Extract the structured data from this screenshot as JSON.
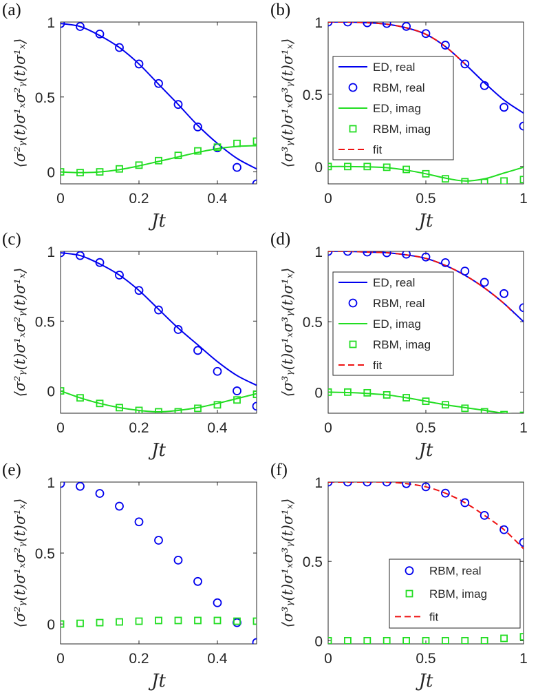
{
  "colors": {
    "real": "#0000ee",
    "imag": "#22dd22",
    "fit": "#ee1111",
    "axis": "#262626"
  },
  "chart_data": [
    {
      "id": "a",
      "panel_label": "(a)",
      "type": "line",
      "xlabel": "Jt",
      "ylabel": "⟨σ²ᵧ(t)σ¹ₓσ²ᵧ(t)σ¹ₓ⟩",
      "xlim": [
        0,
        0.5
      ],
      "ylim": [
        -0.08,
        1.0
      ],
      "xticks": [
        0,
        0.2,
        0.4
      ],
      "xtick_labels": [
        "0",
        "0.2",
        "0.4"
      ],
      "yticks": [
        0,
        0.5,
        1
      ],
      "ytick_labels": [
        "0",
        "0.5",
        "1"
      ],
      "grid": false,
      "legend": null,
      "series": [
        {
          "kind": "line",
          "color_key": "real",
          "x": [
            0,
            0.05,
            0.1,
            0.15,
            0.2,
            0.25,
            0.3,
            0.35,
            0.4,
            0.45,
            0.5
          ],
          "y": [
            0.99,
            0.97,
            0.91,
            0.83,
            0.72,
            0.585,
            0.45,
            0.31,
            0.19,
            0.09,
            0.02
          ]
        },
        {
          "kind": "circle",
          "color_key": "real",
          "x": [
            0,
            0.05,
            0.1,
            0.15,
            0.2,
            0.25,
            0.3,
            0.35,
            0.4,
            0.45,
            0.5
          ],
          "y": [
            0.99,
            0.97,
            0.92,
            0.83,
            0.72,
            0.59,
            0.45,
            0.3,
            0.16,
            0.03,
            -0.08
          ]
        },
        {
          "kind": "line",
          "color_key": "imag",
          "x": [
            0,
            0.05,
            0.1,
            0.15,
            0.2,
            0.25,
            0.3,
            0.35,
            0.4,
            0.45,
            0.5
          ],
          "y": [
            0,
            -0.005,
            0.0,
            0.015,
            0.04,
            0.07,
            0.1,
            0.13,
            0.155,
            0.17,
            0.175
          ]
        },
        {
          "kind": "square",
          "color_key": "imag",
          "x": [
            0,
            0.05,
            0.1,
            0.15,
            0.2,
            0.25,
            0.3,
            0.35,
            0.4,
            0.45,
            0.5
          ],
          "y": [
            0,
            -0.005,
            0.0,
            0.02,
            0.045,
            0.075,
            0.11,
            0.14,
            0.165,
            0.19,
            0.205
          ]
        }
      ]
    },
    {
      "id": "b",
      "panel_label": "(b)",
      "type": "line",
      "xlabel": "Jt",
      "ylabel": "⟨σ³ᵧ(t)σ¹ₓσ³ᵧ(t)σ¹ₓ⟩",
      "xlim": [
        0,
        1
      ],
      "ylim": [
        -0.12,
        1.0
      ],
      "xticks": [
        0,
        0.5,
        1
      ],
      "xtick_labels": [
        "0",
        "0.5",
        "1"
      ],
      "yticks": [
        0,
        0.5,
        1
      ],
      "ytick_labels": [
        "0",
        "0.5",
        "1"
      ],
      "grid": false,
      "legend": {
        "position": "left",
        "entries": [
          {
            "label": "ED, real",
            "kind": "line",
            "color_key": "real"
          },
          {
            "label": "RBM, real",
            "kind": "circle",
            "color_key": "real"
          },
          {
            "label": "ED, imag",
            "kind": "line",
            "color_key": "imag"
          },
          {
            "label": "RBM, imag",
            "kind": "square",
            "color_key": "imag"
          },
          {
            "label": "fit",
            "kind": "dash",
            "color_key": "fit"
          }
        ]
      },
      "series": [
        {
          "kind": "line",
          "color_key": "real",
          "x": [
            0,
            0.1,
            0.2,
            0.3,
            0.4,
            0.5,
            0.6,
            0.7,
            0.8,
            0.9,
            1.0
          ],
          "y": [
            1.0,
            1.0,
            0.995,
            0.985,
            0.96,
            0.915,
            0.83,
            0.71,
            0.58,
            0.46,
            0.37
          ]
        },
        {
          "kind": "circle",
          "color_key": "real",
          "x": [
            0,
            0.1,
            0.2,
            0.3,
            0.4,
            0.5,
            0.6,
            0.7,
            0.8,
            0.9,
            1.0
          ],
          "y": [
            1.0,
            1.0,
            0.995,
            0.99,
            0.97,
            0.92,
            0.84,
            0.71,
            0.56,
            0.41,
            0.28
          ]
        },
        {
          "kind": "line",
          "color_key": "imag",
          "x": [
            0,
            0.1,
            0.2,
            0.3,
            0.4,
            0.5,
            0.6,
            0.7,
            0.8,
            0.9,
            1.0
          ],
          "y": [
            0,
            0,
            -0.002,
            -0.008,
            -0.025,
            -0.05,
            -0.08,
            -0.1,
            -0.085,
            -0.045,
            -0.005
          ]
        },
        {
          "kind": "square",
          "color_key": "imag",
          "x": [
            0,
            0.1,
            0.2,
            0.3,
            0.4,
            0.5,
            0.6,
            0.7,
            0.8,
            0.9,
            1.0
          ],
          "y": [
            0,
            0,
            0,
            -0.005,
            -0.02,
            -0.05,
            -0.085,
            -0.105,
            -0.11,
            -0.1,
            -0.09
          ]
        },
        {
          "kind": "dash",
          "color_key": "fit",
          "x": [
            0,
            0.1,
            0.2,
            0.3,
            0.4,
            0.5,
            0.6,
            0.7
          ],
          "y": [
            1.0,
            1.0,
            0.995,
            0.985,
            0.96,
            0.915,
            0.83,
            0.71
          ]
        }
      ]
    },
    {
      "id": "c",
      "panel_label": "(c)",
      "type": "line",
      "xlabel": "Jt",
      "ylabel": "⟨σ²ᵧ(t)σ¹ₓσ²ᵧ(t)σ¹ₓ⟩",
      "xlim": [
        0,
        0.5
      ],
      "ylim": [
        -0.16,
        1.0
      ],
      "xticks": [
        0,
        0.2,
        0.4
      ],
      "xtick_labels": [
        "0",
        "0.2",
        "0.4"
      ],
      "yticks": [
        0,
        0.5,
        1
      ],
      "ytick_labels": [
        "0",
        "0.5",
        "1"
      ],
      "grid": false,
      "legend": null,
      "series": [
        {
          "kind": "line",
          "color_key": "real",
          "x": [
            0,
            0.05,
            0.1,
            0.15,
            0.2,
            0.25,
            0.3,
            0.35,
            0.4,
            0.45,
            0.5
          ],
          "y": [
            0.99,
            0.97,
            0.91,
            0.83,
            0.72,
            0.585,
            0.45,
            0.33,
            0.21,
            0.11,
            0.04
          ]
        },
        {
          "kind": "circle",
          "color_key": "real",
          "x": [
            0,
            0.05,
            0.1,
            0.15,
            0.2,
            0.25,
            0.3,
            0.35,
            0.4,
            0.45,
            0.5
          ],
          "y": [
            0.99,
            0.97,
            0.92,
            0.83,
            0.72,
            0.58,
            0.44,
            0.29,
            0.14,
            0.0,
            -0.11
          ]
        },
        {
          "kind": "line",
          "color_key": "imag",
          "x": [
            0,
            0.05,
            0.1,
            0.15,
            0.2,
            0.25,
            0.3,
            0.35,
            0.4,
            0.45,
            0.5
          ],
          "y": [
            0,
            -0.05,
            -0.09,
            -0.12,
            -0.14,
            -0.15,
            -0.14,
            -0.12,
            -0.09,
            -0.055,
            -0.02
          ]
        },
        {
          "kind": "square",
          "color_key": "imag",
          "x": [
            0,
            0.05,
            0.1,
            0.15,
            0.2,
            0.25,
            0.3,
            0.35,
            0.4,
            0.45,
            0.5
          ],
          "y": [
            0,
            -0.05,
            -0.09,
            -0.12,
            -0.14,
            -0.15,
            -0.15,
            -0.125,
            -0.1,
            -0.065,
            -0.025
          ]
        }
      ]
    },
    {
      "id": "d",
      "panel_label": "(d)",
      "type": "line",
      "xlabel": "Jt",
      "ylabel": "⟨σ³ᵧ(t)σ¹ₓσ³ᵧ(t)σ¹ₓ⟩",
      "xlim": [
        0,
        1
      ],
      "ylim": [
        -0.15,
        1.0
      ],
      "xticks": [
        0,
        0.5,
        1
      ],
      "xtick_labels": [
        "0",
        "0.5",
        "1"
      ],
      "yticks": [
        0,
        0.5,
        1
      ],
      "ytick_labels": [
        "0",
        "0.5",
        "1"
      ],
      "grid": false,
      "legend": {
        "position": "left",
        "entries": [
          {
            "label": "ED, real",
            "kind": "line",
            "color_key": "real"
          },
          {
            "label": "RBM, real",
            "kind": "circle",
            "color_key": "real"
          },
          {
            "label": "ED, imag",
            "kind": "line",
            "color_key": "imag"
          },
          {
            "label": "RBM, imag",
            "kind": "square",
            "color_key": "imag"
          },
          {
            "label": "fit",
            "kind": "dash",
            "color_key": "fit"
          }
        ]
      },
      "series": [
        {
          "kind": "line",
          "color_key": "real",
          "x": [
            0,
            0.1,
            0.2,
            0.3,
            0.4,
            0.5,
            0.6,
            0.7,
            0.8,
            0.9,
            1.0
          ],
          "y": [
            1.0,
            1.0,
            0.995,
            0.99,
            0.975,
            0.95,
            0.9,
            0.83,
            0.74,
            0.63,
            0.5
          ]
        },
        {
          "kind": "circle",
          "color_key": "real",
          "x": [
            0,
            0.1,
            0.2,
            0.3,
            0.4,
            0.5,
            0.6,
            0.7,
            0.8,
            0.9,
            1.0
          ],
          "y": [
            1.0,
            1.0,
            0.995,
            0.99,
            0.98,
            0.96,
            0.92,
            0.86,
            0.78,
            0.7,
            0.6
          ]
        },
        {
          "kind": "line",
          "color_key": "imag",
          "x": [
            0,
            0.1,
            0.2,
            0.3,
            0.4,
            0.5,
            0.6,
            0.7,
            0.8,
            0.9,
            1.0
          ],
          "y": [
            0,
            -0.003,
            -0.01,
            -0.02,
            -0.04,
            -0.065,
            -0.09,
            -0.11,
            -0.13,
            -0.15,
            -0.16
          ]
        },
        {
          "kind": "square",
          "color_key": "imag",
          "x": [
            0,
            0.1,
            0.2,
            0.3,
            0.4,
            0.5,
            0.6,
            0.7,
            0.8,
            0.9,
            1.0
          ],
          "y": [
            0,
            0,
            -0.005,
            -0.02,
            -0.04,
            -0.065,
            -0.09,
            -0.115,
            -0.14,
            -0.16,
            -0.165
          ]
        },
        {
          "kind": "dash",
          "color_key": "fit",
          "x": [
            0,
            0.1,
            0.2,
            0.3,
            0.4,
            0.5,
            0.6,
            0.7,
            0.8,
            0.9,
            0.95
          ],
          "y": [
            1.0,
            1.0,
            0.995,
            0.99,
            0.975,
            0.95,
            0.9,
            0.83,
            0.74,
            0.63,
            0.56
          ]
        }
      ]
    },
    {
      "id": "e",
      "panel_label": "(e)",
      "type": "scatter",
      "xlabel": "Jt",
      "ylabel": "⟨σ²ᵧ(t)σ¹ₓσ²ᵧ(t)σ¹ₓ⟩",
      "xlim": [
        0,
        0.5
      ],
      "ylim": [
        -0.14,
        1.0
      ],
      "xticks": [
        0,
        0.2,
        0.4
      ],
      "xtick_labels": [
        "0",
        "0.2",
        "0.4"
      ],
      "yticks": [
        0,
        0.5,
        1
      ],
      "ytick_labels": [
        "0",
        "0.5",
        "1"
      ],
      "grid": false,
      "legend": null,
      "series": [
        {
          "kind": "circle",
          "color_key": "real",
          "x": [
            0,
            0.05,
            0.1,
            0.15,
            0.2,
            0.25,
            0.3,
            0.35,
            0.4,
            0.45,
            0.5
          ],
          "y": [
            0.99,
            0.97,
            0.92,
            0.83,
            0.72,
            0.59,
            0.45,
            0.3,
            0.15,
            0.01,
            -0.13
          ]
        },
        {
          "kind": "square",
          "color_key": "imag",
          "x": [
            0,
            0.05,
            0.1,
            0.15,
            0.2,
            0.25,
            0.3,
            0.35,
            0.4,
            0.45,
            0.5
          ],
          "y": [
            0,
            0.005,
            0.01,
            0.015,
            0.02,
            0.025,
            0.025,
            0.025,
            0.025,
            0.02,
            0.02
          ]
        }
      ]
    },
    {
      "id": "f",
      "panel_label": "(f)",
      "type": "scatter",
      "xlabel": "Jt",
      "ylabel": "⟨σ³ᵧ(t)σ¹ₓσ³ᵧ(t)σ¹ₓ⟩",
      "xlim": [
        0,
        1
      ],
      "ylim": [
        -0.02,
        1.0
      ],
      "xticks": [
        0,
        0.5,
        1
      ],
      "xtick_labels": [
        "0",
        "0.5",
        "1"
      ],
      "yticks": [
        0,
        0.5,
        1
      ],
      "ytick_labels": [
        "0",
        "0.5",
        "1"
      ],
      "grid": false,
      "legend": {
        "position": "bottom-right",
        "entries": [
          {
            "label": "RBM, real",
            "kind": "circle",
            "color_key": "real"
          },
          {
            "label": "RBM, imag",
            "kind": "square",
            "color_key": "imag"
          },
          {
            "label": "fit",
            "kind": "dash",
            "color_key": "fit"
          }
        ]
      },
      "series": [
        {
          "kind": "circle",
          "color_key": "real",
          "x": [
            0,
            0.1,
            0.2,
            0.3,
            0.4,
            0.5,
            0.6,
            0.7,
            0.8,
            0.9,
            1.0
          ],
          "y": [
            1.0,
            1.0,
            1.0,
            1.0,
            0.99,
            0.97,
            0.93,
            0.87,
            0.79,
            0.7,
            0.62
          ]
        },
        {
          "kind": "square",
          "color_key": "imag",
          "x": [
            0,
            0.1,
            0.2,
            0.3,
            0.4,
            0.5,
            0.6,
            0.7,
            0.8,
            0.9,
            1.0
          ],
          "y": [
            0,
            0,
            0,
            0,
            0,
            0,
            0,
            0,
            0,
            0.015,
            0.025
          ]
        },
        {
          "kind": "dash",
          "color_key": "fit",
          "x": [
            0,
            0.1,
            0.2,
            0.3,
            0.4,
            0.5,
            0.6,
            0.7,
            0.8,
            0.9,
            1.0
          ],
          "y": [
            1.0,
            1.0,
            1.0,
            1.0,
            0.99,
            0.97,
            0.93,
            0.87,
            0.79,
            0.7,
            0.58
          ]
        }
      ]
    }
  ]
}
